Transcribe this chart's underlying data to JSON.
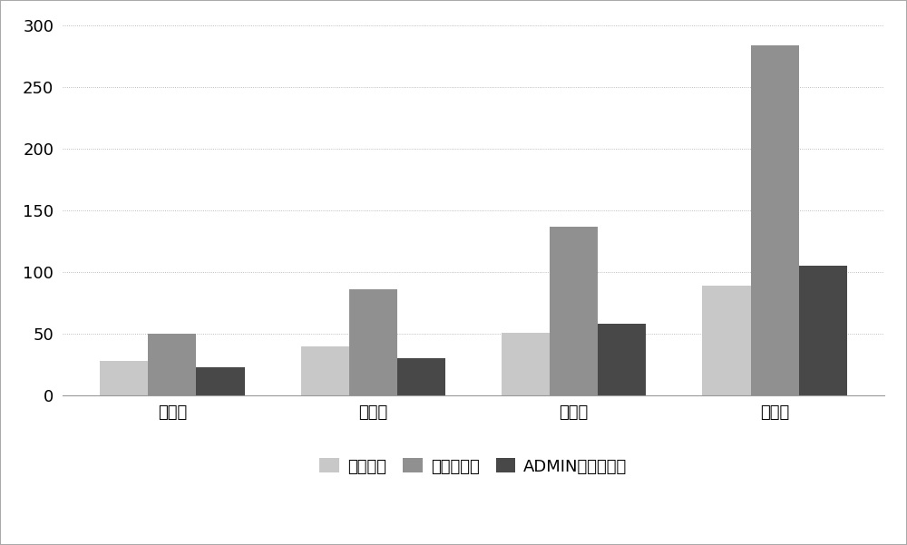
{
  "categories": [
    "第一组",
    "第二组",
    "第三组",
    "第四组"
  ],
  "series": [
    {
      "label": "漏洞数量",
      "values": [
        28,
        40,
        51,
        89
      ],
      "color": "#c8c8c8"
    },
    {
      "label": "普通攻击链",
      "values": [
        50,
        86,
        137,
        284
      ],
      "color": "#909090"
    },
    {
      "label": "ADMIN以上攻击链",
      "values": [
        23,
        30,
        58,
        105
      ],
      "color": "#484848"
    }
  ],
  "ylim": [
    0,
    300
  ],
  "yticks": [
    0,
    50,
    100,
    150,
    200,
    250,
    300
  ],
  "background_color": "#ffffff",
  "plot_bg_color": "#ffffff",
  "grid_color": "#aaaaaa",
  "outer_border_color": "#999999",
  "bar_width": 0.24,
  "legend_fontsize": 13,
  "tick_fontsize": 13,
  "grid_linestyle": ":"
}
